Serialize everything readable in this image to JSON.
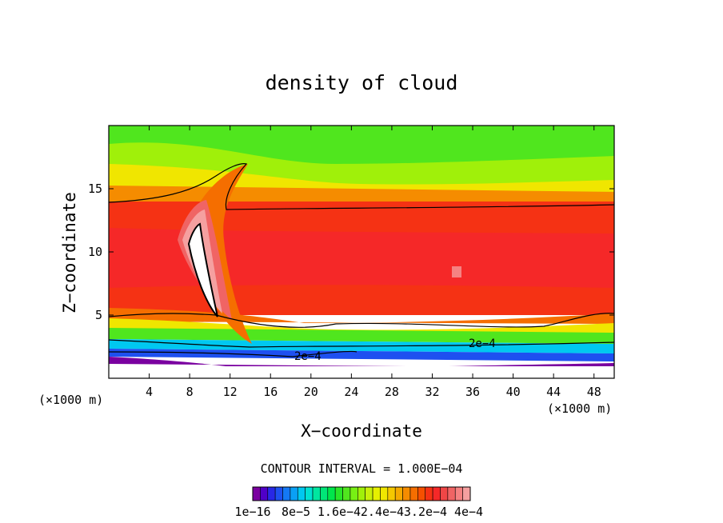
{
  "chart_data": {
    "type": "heatmap",
    "title": "density of cloud",
    "xlabel": "X−coordinate",
    "ylabel": "Z−coordinate",
    "x_unit_left": "(×1000 m)",
    "x_unit_right": "(×1000 m)",
    "xlim": [
      0,
      50
    ],
    "ylim": [
      0,
      20
    ],
    "x_ticks": [
      4,
      8,
      12,
      16,
      20,
      24,
      28,
      32,
      36,
      40,
      44,
      48
    ],
    "y_ticks": [
      5,
      10,
      15
    ],
    "contour_interval_text": "CONTOUR INTERVAL = 1.000E−04",
    "contour_labels": [
      "2e−4",
      "2e−4"
    ],
    "colorbar_labels": [
      "1e−16",
      "8e−5",
      "1.6e−4",
      "2.4e−4",
      "3.2e−4",
      "4e−4"
    ],
    "colorbar_colors": [
      "#7a00a0",
      "#5000c8",
      "#2828e6",
      "#1e50f0",
      "#1478f5",
      "#0aa0f5",
      "#00c8f0",
      "#00e1d2",
      "#00e6a0",
      "#00e678",
      "#00e64b",
      "#28e628",
      "#50e61e",
      "#78f014",
      "#a0f00a",
      "#c8f00a",
      "#e6f000",
      "#f0e600",
      "#f5c800",
      "#f5aa00",
      "#f58c00",
      "#f56e00",
      "#f55000",
      "#f53214",
      "#f52828",
      "#f04646",
      "#f06464",
      "#f58282",
      "#f5a0a0"
    ],
    "series": [
      {
        "name": "2e−4 contour upper",
        "x": [
          0,
          2,
          4,
          6,
          8,
          10,
          11,
          12,
          13,
          14,
          16,
          20,
          24,
          28,
          32,
          36,
          40,
          44,
          48,
          50
        ],
        "y": [
          13.7,
          14,
          14.3,
          14.8,
          15.5,
          16.3,
          16.8,
          17,
          16.6,
          13.5,
          13.4,
          13.3,
          13.3,
          13.4,
          13.4,
          13.4,
          13.4,
          13.5,
          13.6,
          13.8
        ]
      },
      {
        "name": "2e−4 contour lower",
        "x": [
          0,
          2,
          4,
          6,
          8,
          10,
          12,
          14,
          16,
          20,
          24,
          28,
          32,
          36,
          40,
          44,
          46,
          48,
          50
        ],
        "y": [
          5,
          5.4,
          5.1,
          4.9,
          4.9,
          5,
          4.8,
          4.5,
          4.1,
          3.9,
          4.5,
          4.7,
          4.8,
          4.5,
          4,
          4.2,
          4.7,
          5.2,
          5.1
        ]
      }
    ]
  }
}
